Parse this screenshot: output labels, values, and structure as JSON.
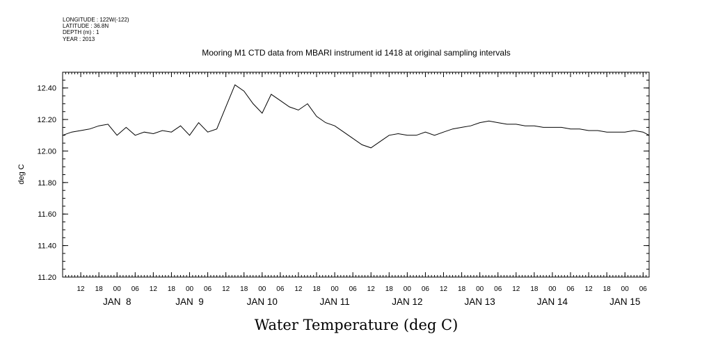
{
  "header": {
    "meta_lines": [
      "LONGITUDE : 122W(-122)",
      "LATITUDE : 36.8N",
      "DEPTH (m) : 1",
      "YEAR : 2013"
    ]
  },
  "chart_data": {
    "type": "line",
    "title": "Mooring M1 CTD data from MBARI instrument id 1418 at original sampling intervals",
    "ylabel": "deg C",
    "bottom_label": "Water Temperature (deg C)",
    "ylim": [
      11.2,
      12.5
    ],
    "y_ticks": [
      "11.20",
      "11.40",
      "11.60",
      "11.80",
      "12.00",
      "12.20",
      "12.40"
    ],
    "xlim": [
      "JAN 7 06:00",
      "JAN 15 08:00"
    ],
    "hour_ticks": [
      "12",
      "18",
      "00",
      "06",
      "12",
      "18",
      "00",
      "06",
      "12",
      "18",
      "00",
      "06",
      "12",
      "18",
      "00",
      "06",
      "12",
      "18",
      "00",
      "06",
      "12",
      "18",
      "00",
      "06",
      "12",
      "18",
      "00",
      "06",
      "12",
      "18",
      "00",
      "06"
    ],
    "day_labels": [
      "JAN  8",
      "JAN  9",
      "JAN 10",
      "JAN 11",
      "JAN 12",
      "JAN 13",
      "JAN 14",
      "JAN 15"
    ],
    "grid": false,
    "series": [
      {
        "x": [
          "JAN 7 06:00",
          "JAN 7 09:00",
          "JAN 7 12:00",
          "JAN 7 15:00",
          "JAN 7 18:00",
          "JAN 7 21:00",
          "JAN 8 00:00",
          "JAN 8 03:00",
          "JAN 8 06:00",
          "JAN 8 09:00",
          "JAN 8 12:00",
          "JAN 8 15:00",
          "JAN 8 18:00",
          "JAN 8 21:00",
          "JAN 9 00:00",
          "JAN 9 03:00",
          "JAN 9 06:00",
          "JAN 9 09:00",
          "JAN 9 12:00",
          "JAN 9 15:00",
          "JAN 9 18:00",
          "JAN 9 21:00",
          "JAN 10 00:00",
          "JAN 10 03:00",
          "JAN 10 06:00",
          "JAN 10 09:00",
          "JAN 10 12:00",
          "JAN 10 15:00",
          "JAN 10 18:00",
          "JAN 10 21:00",
          "JAN 11 00:00",
          "JAN 11 03:00",
          "JAN 11 06:00",
          "JAN 11 09:00",
          "JAN 11 12:00",
          "JAN 11 15:00",
          "JAN 11 18:00",
          "JAN 11 21:00",
          "JAN 12 00:00",
          "JAN 12 03:00",
          "JAN 12 06:00",
          "JAN 12 09:00",
          "JAN 12 12:00",
          "JAN 12 15:00",
          "JAN 12 18:00",
          "JAN 12 21:00",
          "JAN 13 00:00",
          "JAN 13 03:00",
          "JAN 13 06:00",
          "JAN 13 09:00",
          "JAN 13 12:00",
          "JAN 13 15:00",
          "JAN 13 18:00",
          "JAN 13 21:00",
          "JAN 14 00:00",
          "JAN 14 03:00",
          "JAN 14 06:00",
          "JAN 14 09:00",
          "JAN 14 12:00",
          "JAN 14 15:00",
          "JAN 14 18:00",
          "JAN 14 21:00",
          "JAN 15 00:00",
          "JAN 15 03:00",
          "JAN 15 06:00",
          "JAN 15 08:00"
        ],
        "values": [
          12.1,
          12.12,
          12.13,
          12.14,
          12.16,
          12.17,
          12.1,
          12.15,
          12.1,
          12.12,
          12.11,
          12.13,
          12.12,
          12.16,
          12.1,
          12.18,
          12.12,
          12.14,
          12.28,
          12.42,
          12.38,
          12.3,
          12.24,
          12.36,
          12.32,
          12.28,
          12.26,
          12.3,
          12.22,
          12.18,
          12.16,
          12.12,
          12.08,
          12.04,
          12.02,
          12.06,
          12.1,
          12.11,
          12.1,
          12.1,
          12.12,
          12.1,
          12.12,
          12.14,
          12.15,
          12.16,
          12.18,
          12.19,
          12.18,
          12.17,
          12.17,
          12.16,
          12.16,
          12.15,
          12.15,
          12.15,
          12.14,
          12.14,
          12.13,
          12.13,
          12.12,
          12.12,
          12.12,
          12.13,
          12.12,
          12.1
        ],
        "color": "#000000"
      }
    ]
  }
}
